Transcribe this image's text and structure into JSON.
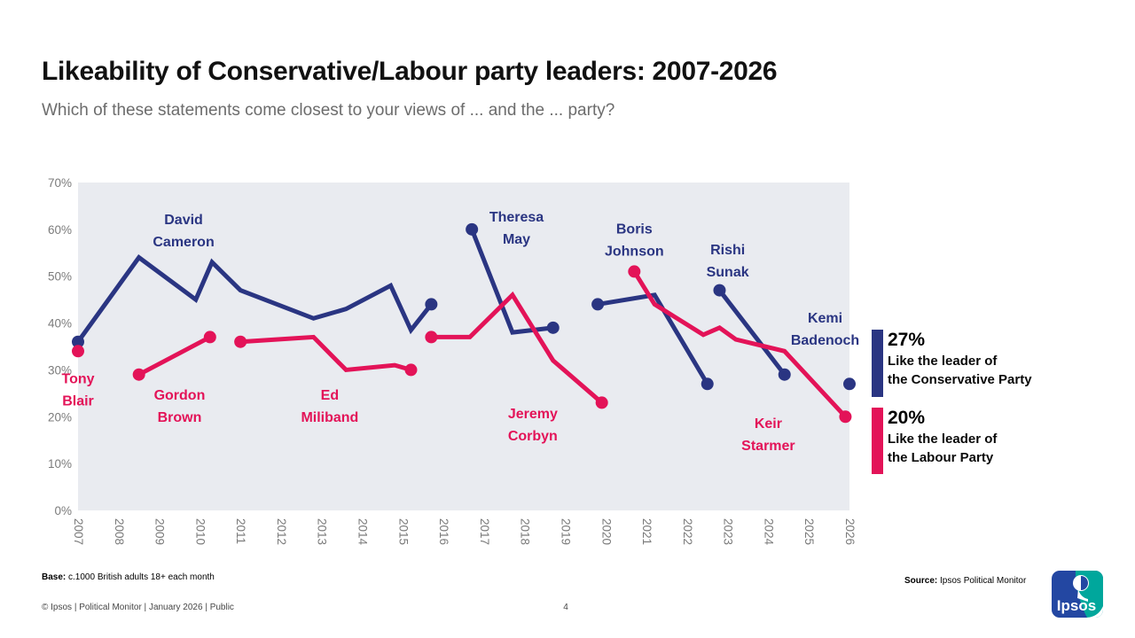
{
  "header": {
    "title": "Likeability of Conservative/Labour party leaders: 2007-2026",
    "subtitle": "Which of these statements come closest to your views of ... and the ... party?"
  },
  "colors": {
    "conservative": "#2a3582",
    "labour": "#e31358",
    "plot_bg": "#e9ebf0",
    "axis_text": "#7b7b7b",
    "logo_blue": "#2347a2",
    "logo_teal": "#00a79c"
  },
  "chart_data": {
    "type": "line",
    "title": "Likeability of Conservative/Labour party leaders: 2007-2026",
    "grid": false,
    "legend_position": "right",
    "x_axis": {
      "min": 2007,
      "max": 2026,
      "ticks": [
        2007,
        2008,
        2009,
        2010,
        2011,
        2012,
        2013,
        2014,
        2015,
        2016,
        2017,
        2018,
        2019,
        2020,
        2021,
        2022,
        2023,
        2024,
        2025,
        2026
      ]
    },
    "y_axis": {
      "min": 0,
      "max": 70,
      "unit": "%",
      "tick_values": [
        0,
        10,
        20,
        30,
        40,
        50,
        60,
        70
      ],
      "tick_labels": [
        "0%",
        "10%",
        "20%",
        "30%",
        "40%",
        "50%",
        "60%",
        "70%"
      ]
    },
    "series": [
      {
        "name": "Like the leader of the Conservative Party",
        "color_key": "conservative",
        "current_value": "27%",
        "segments": [
          {
            "leader": "David Cameron",
            "points": [
              [
                2007.0,
                36
              ],
              [
                2008.5,
                54
              ],
              [
                2009.9,
                45
              ],
              [
                2010.3,
                53
              ],
              [
                2011.0,
                47
              ],
              [
                2012.8,
                41
              ],
              [
                2013.6,
                43
              ],
              [
                2014.7,
                48
              ],
              [
                2015.2,
                38.5
              ],
              [
                2015.7,
                44
              ]
            ],
            "label": {
              "x": 2009.6,
              "y": 60
            }
          },
          {
            "leader": "Theresa May",
            "points": [
              [
                2016.7,
                60
              ],
              [
                2017.7,
                38
              ],
              [
                2018.7,
                39
              ]
            ],
            "label": {
              "x": 2017.8,
              "y": 60.5
            }
          },
          {
            "leader": "Boris Johnson",
            "points": [
              [
                2019.8,
                44
              ],
              [
                2021.2,
                46
              ],
              [
                2022.5,
                27
              ]
            ],
            "label": {
              "x": 2020.7,
              "y": 58
            }
          },
          {
            "leader": "Rishi Sunak",
            "points": [
              [
                2022.8,
                47
              ],
              [
                2024.4,
                29
              ]
            ],
            "label": {
              "x": 2023.0,
              "y": 53.5
            }
          },
          {
            "leader": "Kemi Badenoch",
            "points": [
              [
                2026.0,
                27
              ]
            ],
            "label": {
              "x": 2025.4,
              "y": 39
            }
          }
        ]
      },
      {
        "name": "Like the leader of the Labour Party",
        "color_key": "labour",
        "current_value": "20%",
        "segments": [
          {
            "leader": "Tony Blair",
            "points": [
              [
                2007.0,
                34
              ]
            ],
            "label": {
              "x": 2007.0,
              "y": 26
            }
          },
          {
            "leader": "Gordon Brown",
            "points": [
              [
                2008.5,
                29
              ],
              [
                2010.25,
                37
              ]
            ],
            "label": {
              "x": 2009.5,
              "y": 22.5
            }
          },
          {
            "leader": "Ed Miliband",
            "points": [
              [
                2011.0,
                36
              ],
              [
                2012.8,
                37
              ],
              [
                2013.6,
                30
              ],
              [
                2014.8,
                31
              ],
              [
                2015.2,
                30
              ]
            ],
            "label": {
              "x": 2013.2,
              "y": 22.5
            }
          },
          {
            "leader": "Jeremy Corbyn",
            "points": [
              [
                2015.7,
                37
              ],
              [
                2016.65,
                37
              ],
              [
                2017.7,
                46
              ],
              [
                2018.7,
                32
              ],
              [
                2019.9,
                23
              ]
            ],
            "label": {
              "x": 2018.2,
              "y": 18.5
            }
          },
          {
            "leader": "Keir Starmer",
            "points": [
              [
                2020.7,
                51
              ],
              [
                2021.2,
                44
              ],
              [
                2022.4,
                37.5
              ],
              [
                2022.8,
                39
              ],
              [
                2023.2,
                36.5
              ],
              [
                2024.4,
                34
              ],
              [
                2025.9,
                20
              ]
            ],
            "label": {
              "x": 2024.0,
              "y": 16.5
            }
          }
        ]
      }
    ]
  },
  "legend": {
    "items": [
      {
        "value": "27%",
        "line1": "Like the leader of",
        "line2": "the Conservative Party",
        "color_key": "conservative"
      },
      {
        "value": "20%",
        "line1": "Like the leader of",
        "line2": "the Labour Party",
        "color_key": "labour"
      }
    ]
  },
  "footer": {
    "base_label": "Base:",
    "base_text": " c.1000 British adults 18+ each month",
    "copyright": "© Ipsos | Political Monitor | January 2026 | Public",
    "page_number": "4",
    "source_label": "Source:",
    "source_text": " Ipsos Political Monitor",
    "logo_text": "Ipsos"
  }
}
